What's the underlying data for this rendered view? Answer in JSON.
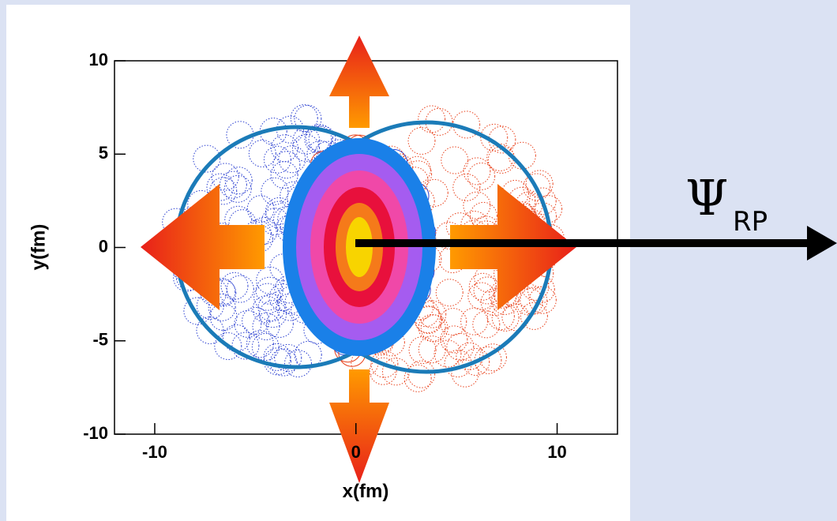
{
  "plot": {
    "xlabel": "x(fm)",
    "ylabel": "y(fm)",
    "xlim": [
      -12,
      13
    ],
    "ylim": [
      -10,
      10
    ],
    "xticks": [
      -10,
      0,
      10
    ],
    "yticks": [
      -10,
      -5,
      0,
      5,
      10
    ]
  },
  "annotation": {
    "symbol": "Ψ",
    "subscript": "RP"
  }
}
